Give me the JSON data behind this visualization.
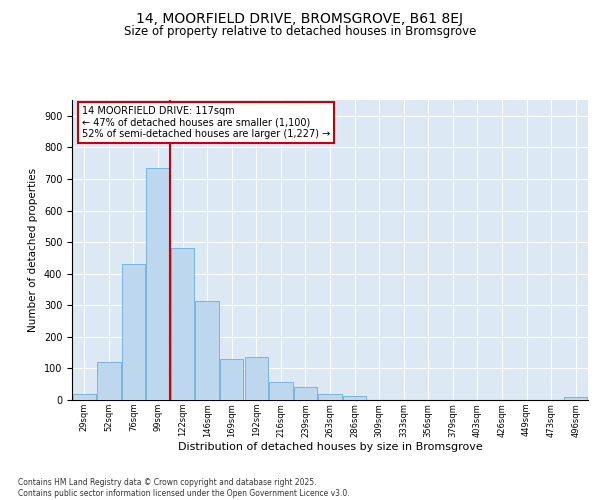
{
  "title1": "14, MOORFIELD DRIVE, BROMSGROVE, B61 8EJ",
  "title2": "Size of property relative to detached houses in Bromsgrove",
  "xlabel": "Distribution of detached houses by size in Bromsgrove",
  "ylabel": "Number of detached properties",
  "bar_labels": [
    "29sqm",
    "52sqm",
    "76sqm",
    "99sqm",
    "122sqm",
    "146sqm",
    "169sqm",
    "192sqm",
    "216sqm",
    "239sqm",
    "263sqm",
    "286sqm",
    "309sqm",
    "333sqm",
    "356sqm",
    "379sqm",
    "403sqm",
    "426sqm",
    "449sqm",
    "473sqm",
    "496sqm"
  ],
  "bar_values": [
    18,
    120,
    430,
    735,
    480,
    315,
    130,
    135,
    58,
    42,
    18,
    13,
    0,
    0,
    0,
    0,
    0,
    0,
    0,
    0,
    10
  ],
  "bar_color": "#bdd7ee",
  "bar_edgecolor": "#6baed6",
  "vline_x": 4.0,
  "vline_color": "#cc0000",
  "annotation_text": "14 MOORFIELD DRIVE: 117sqm\n← 47% of detached houses are smaller (1,100)\n52% of semi-detached houses are larger (1,227) →",
  "annotation_box_color": "#cc0000",
  "ylim": [
    0,
    950
  ],
  "yticks": [
    0,
    100,
    200,
    300,
    400,
    500,
    600,
    700,
    800,
    900
  ],
  "bg_color": "#dce9f5",
  "footnote": "Contains HM Land Registry data © Crown copyright and database right 2025.\nContains public sector information licensed under the Open Government Licence v3.0.",
  "title1_fontsize": 10,
  "title2_fontsize": 8.5,
  "xlabel_fontsize": 8,
  "ylabel_fontsize": 7.5,
  "annot_fontsize": 7,
  "footnote_fontsize": 5.5
}
